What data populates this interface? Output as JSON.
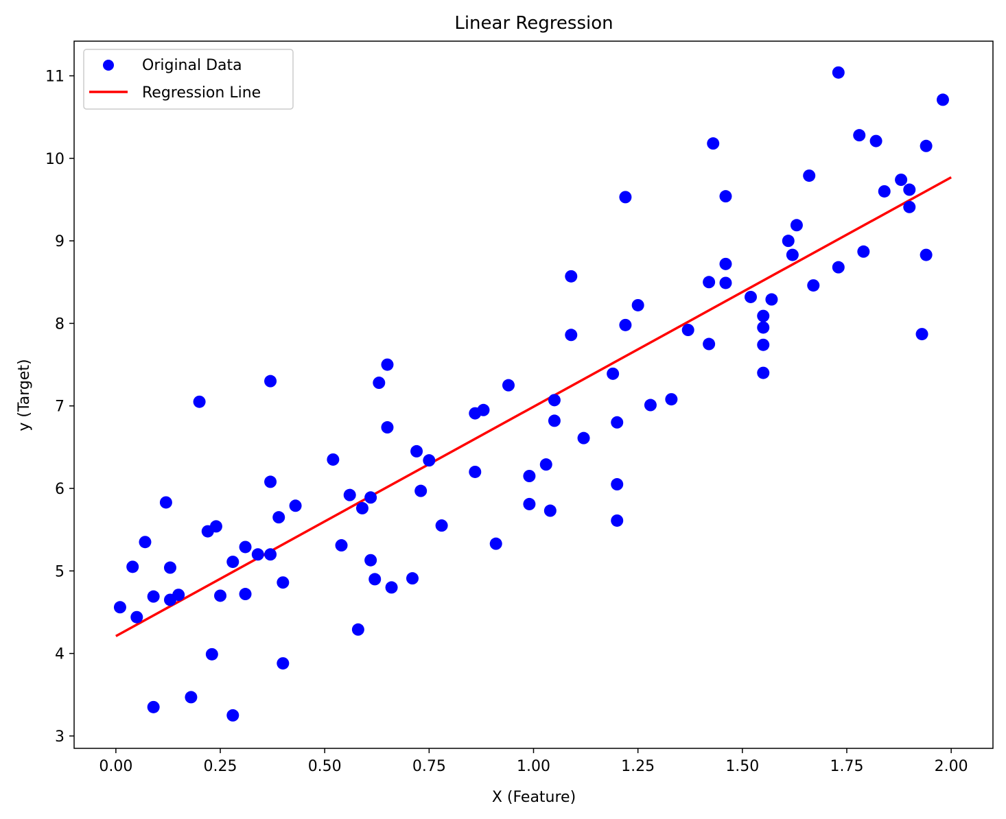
{
  "chart_data": {
    "type": "scatter",
    "title": "Linear Regression",
    "xlabel": "X (Feature)",
    "ylabel": "y (Target)",
    "xlim": [
      -0.1,
      2.1
    ],
    "ylim": [
      2.85,
      11.42
    ],
    "xticks": [
      0.0,
      0.25,
      0.5,
      0.75,
      1.0,
      1.25,
      1.5,
      1.75,
      2.0
    ],
    "xtick_labels": [
      "0.00",
      "0.25",
      "0.50",
      "0.75",
      "1.00",
      "1.25",
      "1.50",
      "1.75",
      "2.00"
    ],
    "yticks": [
      3,
      4,
      5,
      6,
      7,
      8,
      9,
      10,
      11
    ],
    "ytick_labels": [
      "3",
      "4",
      "5",
      "6",
      "7",
      "8",
      "9",
      "10",
      "11"
    ],
    "grid": false,
    "legend_position": "top-left",
    "colors": {
      "points": "#0000ff",
      "line": "#ff0000"
    },
    "series": [
      {
        "name": "Original Data",
        "kind": "scatter",
        "points": [
          [
            0.01,
            4.56
          ],
          [
            0.04,
            5.05
          ],
          [
            0.05,
            4.44
          ],
          [
            0.07,
            5.35
          ],
          [
            0.09,
            3.35
          ],
          [
            0.09,
            4.69
          ],
          [
            0.12,
            5.83
          ],
          [
            0.13,
            5.04
          ],
          [
            0.13,
            4.65
          ],
          [
            0.15,
            4.71
          ],
          [
            0.18,
            3.47
          ],
          [
            0.2,
            7.05
          ],
          [
            0.22,
            5.48
          ],
          [
            0.23,
            3.99
          ],
          [
            0.24,
            5.54
          ],
          [
            0.25,
            4.7
          ],
          [
            0.28,
            5.11
          ],
          [
            0.28,
            3.25
          ],
          [
            0.31,
            5.29
          ],
          [
            0.31,
            4.72
          ],
          [
            0.34,
            5.2
          ],
          [
            0.37,
            5.2
          ],
          [
            0.37,
            6.08
          ],
          [
            0.37,
            7.3
          ],
          [
            0.39,
            5.65
          ],
          [
            0.4,
            4.86
          ],
          [
            0.4,
            3.88
          ],
          [
            0.43,
            5.79
          ],
          [
            0.52,
            6.35
          ],
          [
            0.54,
            5.31
          ],
          [
            0.56,
            5.92
          ],
          [
            0.58,
            4.29
          ],
          [
            0.59,
            5.76
          ],
          [
            0.61,
            5.89
          ],
          [
            0.61,
            5.13
          ],
          [
            0.62,
            4.9
          ],
          [
            0.63,
            7.28
          ],
          [
            0.65,
            7.5
          ],
          [
            0.65,
            6.74
          ],
          [
            0.66,
            4.8
          ],
          [
            0.71,
            4.91
          ],
          [
            0.72,
            6.45
          ],
          [
            0.73,
            5.97
          ],
          [
            0.75,
            6.34
          ],
          [
            0.78,
            5.55
          ],
          [
            0.86,
            6.91
          ],
          [
            0.86,
            6.2
          ],
          [
            0.88,
            6.95
          ],
          [
            0.91,
            5.33
          ],
          [
            0.94,
            7.25
          ],
          [
            0.99,
            6.15
          ],
          [
            0.99,
            5.81
          ],
          [
            1.03,
            6.29
          ],
          [
            1.04,
            5.73
          ],
          [
            1.05,
            7.07
          ],
          [
            1.05,
            6.82
          ],
          [
            1.09,
            8.57
          ],
          [
            1.09,
            7.86
          ],
          [
            1.12,
            6.61
          ],
          [
            1.19,
            7.39
          ],
          [
            1.2,
            6.05
          ],
          [
            1.2,
            5.61
          ],
          [
            1.2,
            6.8
          ],
          [
            1.22,
            9.53
          ],
          [
            1.22,
            7.98
          ],
          [
            1.25,
            8.22
          ],
          [
            1.28,
            7.01
          ],
          [
            1.33,
            7.08
          ],
          [
            1.37,
            7.92
          ],
          [
            1.42,
            8.5
          ],
          [
            1.42,
            7.75
          ],
          [
            1.43,
            10.18
          ],
          [
            1.46,
            9.54
          ],
          [
            1.46,
            8.72
          ],
          [
            1.46,
            8.49
          ],
          [
            1.52,
            8.32
          ],
          [
            1.55,
            7.95
          ],
          [
            1.55,
            7.74
          ],
          [
            1.55,
            7.4
          ],
          [
            1.55,
            8.09
          ],
          [
            1.57,
            8.29
          ],
          [
            1.61,
            9.0
          ],
          [
            1.62,
            8.83
          ],
          [
            1.63,
            9.19
          ],
          [
            1.66,
            9.79
          ],
          [
            1.67,
            8.46
          ],
          [
            1.73,
            11.04
          ],
          [
            1.73,
            8.68
          ],
          [
            1.78,
            10.28
          ],
          [
            1.79,
            8.87
          ],
          [
            1.82,
            10.21
          ],
          [
            1.84,
            9.6
          ],
          [
            1.88,
            9.74
          ],
          [
            1.9,
            9.62
          ],
          [
            1.9,
            9.41
          ],
          [
            1.93,
            7.87
          ],
          [
            1.94,
            10.15
          ],
          [
            1.94,
            8.83
          ],
          [
            1.98,
            10.71
          ]
        ]
      },
      {
        "name": "Regression Line",
        "kind": "line",
        "points": [
          [
            0.0,
            4.21
          ],
          [
            2.0,
            9.77
          ]
        ]
      }
    ]
  }
}
